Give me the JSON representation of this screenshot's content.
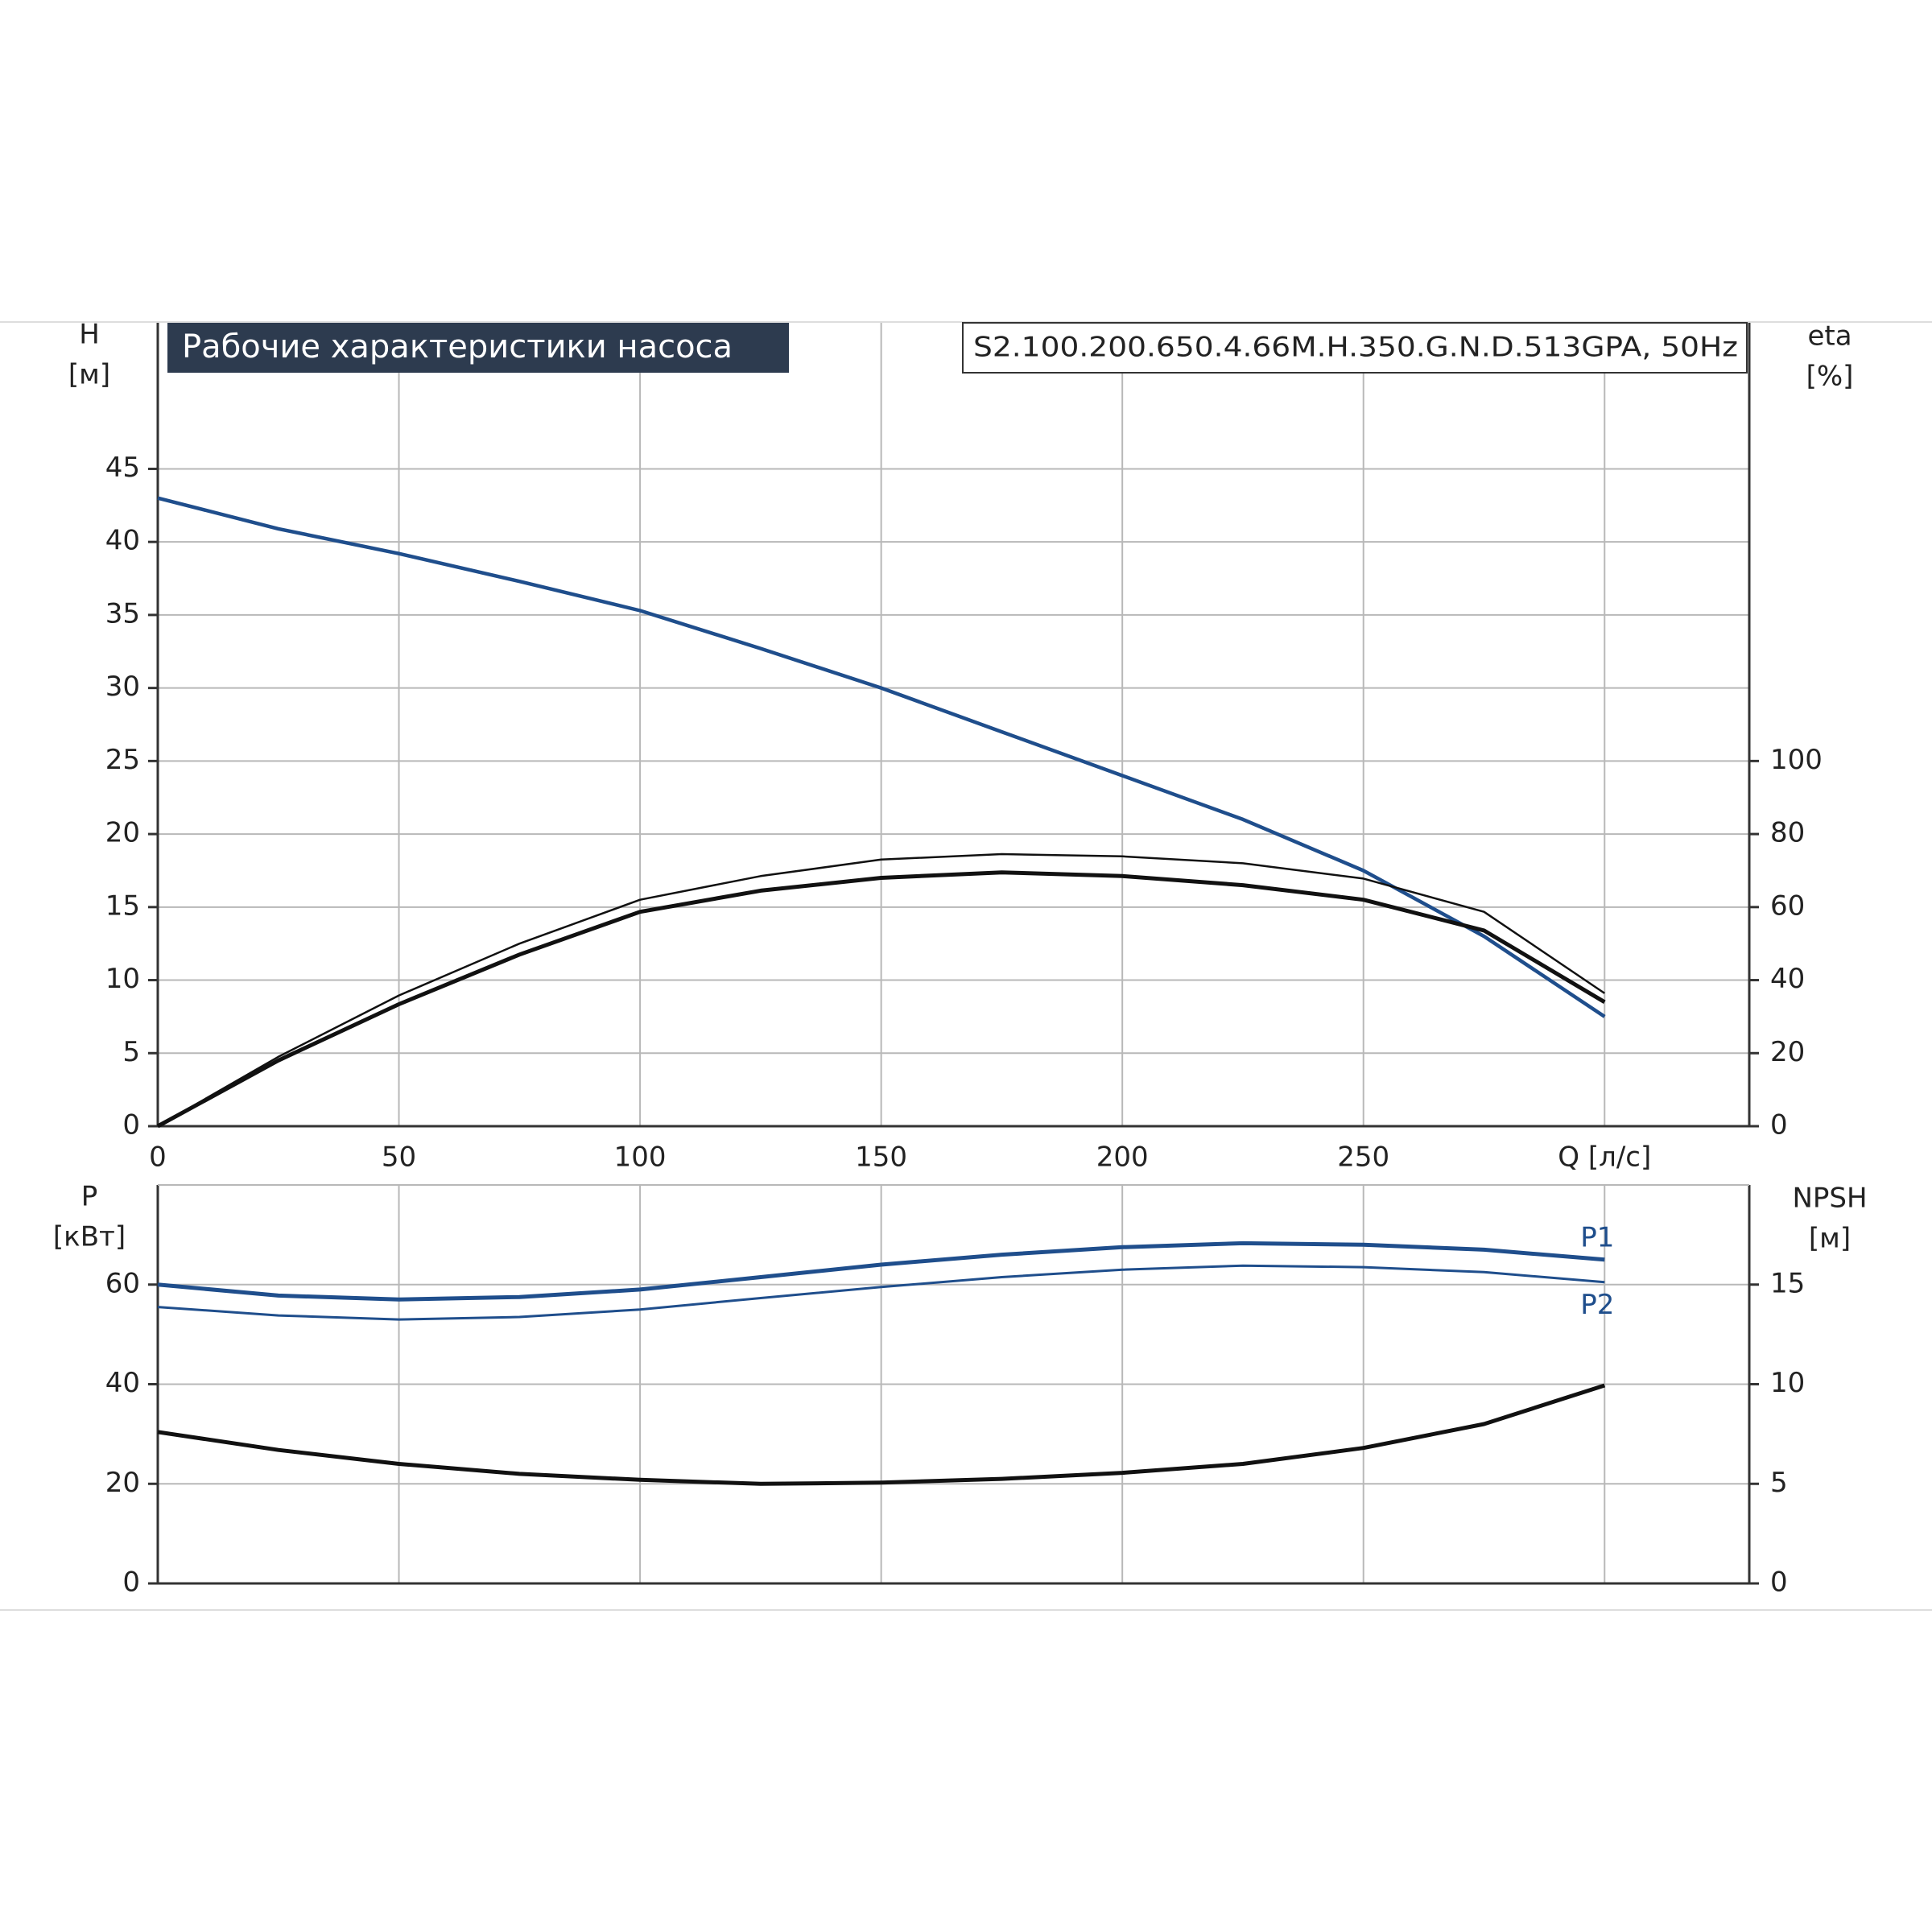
{
  "chart_data": [
    {
      "type": "line",
      "title": "Рабочие характеристики насоса",
      "model": "S2.100.200.650.4.66M.H.350.G.N.D.513GPA, 50Hz",
      "y_label": [
        "H",
        "[м]"
      ],
      "y2_label": [
        "eta",
        "[%]"
      ],
      "x": [
        0,
        25,
        50,
        75,
        100,
        125,
        150,
        175,
        200,
        225,
        250,
        275,
        300
      ],
      "xlim": [
        0,
        330
      ],
      "xticks": [
        0,
        50,
        100,
        150,
        200,
        250,
        {
          "value": 300,
          "label": "Q [л/с]"
        }
      ],
      "ylim": [
        0,
        55
      ],
      "yticks": [
        0,
        5,
        10,
        15,
        20,
        25,
        30,
        35,
        40,
        45
      ],
      "y2lim": [
        0,
        220
      ],
      "y2ticks": [
        0,
        20,
        40,
        60,
        80,
        100
      ],
      "grid": true,
      "series": [
        {
          "color": "#1f4e8c",
          "values": [
            43,
            40.9,
            39.2,
            37.3,
            35.3,
            32.7,
            30,
            27,
            24,
            21,
            17.5,
            13,
            7.5
          ]
        },
        {
          "color": "#111111",
          "axis": "y2",
          "values": [
            0,
            19,
            35.8,
            50,
            62,
            68.5,
            73,
            74.5,
            73.9,
            72,
            67.8,
            58.7,
            36.4
          ]
        },
        {
          "color": "#111111",
          "axis": "y2",
          "values": [
            0,
            18,
            33.4,
            47,
            58.7,
            64.5,
            68,
            69.5,
            68.5,
            66,
            62,
            53.6,
            34
          ]
        }
      ]
    },
    {
      "type": "line",
      "y_label": [
        "P",
        "[кВт]"
      ],
      "y2_label": [
        "NPSH",
        "[м]"
      ],
      "x": [
        0,
        25,
        50,
        75,
        100,
        125,
        150,
        175,
        200,
        225,
        250,
        275,
        300
      ],
      "xlim": [
        0,
        330
      ],
      "ylim": [
        0,
        80
      ],
      "yticks": [
        0,
        20,
        40,
        60
      ],
      "y2lim": [
        0,
        20
      ],
      "y2ticks": [
        0,
        5,
        10,
        15
      ],
      "grid": true,
      "series": [
        {
          "name": "P1",
          "color": "#1f4e8c",
          "values": [
            60,
            57.8,
            57,
            57.5,
            59,
            61.5,
            64,
            66,
            67.5,
            68.3,
            68,
            67,
            65
          ]
        },
        {
          "name": "P2",
          "color": "#1f4e8c",
          "values": [
            55.5,
            53.8,
            53,
            53.5,
            55,
            57.3,
            59.5,
            61.5,
            63,
            63.8,
            63.5,
            62.5,
            60.5
          ]
        },
        {
          "color": "#111111",
          "axis": "y2",
          "values": [
            7.6,
            6.7,
            6,
            5.5,
            5.2,
            5,
            5.06,
            5.25,
            5.55,
            6,
            6.8,
            8,
            9.94
          ]
        }
      ]
    }
  ]
}
